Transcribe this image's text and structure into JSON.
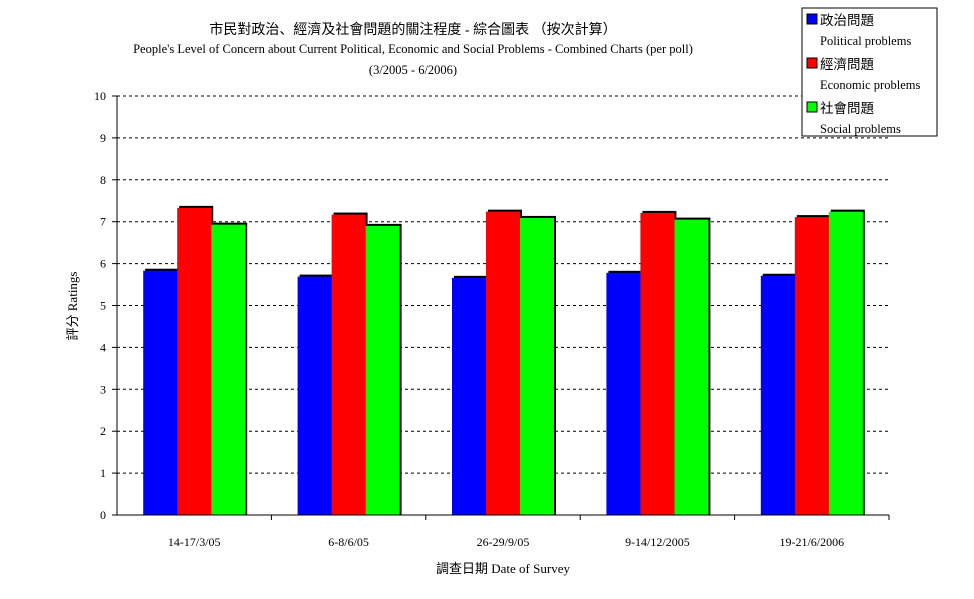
{
  "chart_data": {
    "type": "bar",
    "title": "市民對政治、經濟及社會問題的關注程度  -  綜合圖表  （按次計算）",
    "subtitle": "People's Level of Concern about Current Political, Economic and Social Problems - Combined Charts (per poll)",
    "period": "(3/2005 - 6/2006)",
    "xlabel": "調查日期 Date of Survey",
    "ylabel": "評分 Ratings",
    "ylim": [
      0,
      10
    ],
    "yticks": [
      "0",
      "1",
      "2",
      "3",
      "4",
      "5",
      "6",
      "7",
      "8",
      "9",
      "10"
    ],
    "grid": true,
    "legend_position": "top-right",
    "categories": [
      "14-17/3/05",
      "6-8/6/05",
      "26-29/9/05",
      "9-14/12/2005",
      "19-21/6/2006"
    ],
    "series": [
      {
        "name": "政治問題",
        "name_en": "Political problems",
        "color": "#0000ff",
        "values": [
          5.83,
          5.69,
          5.66,
          5.78,
          5.71
        ]
      },
      {
        "name": "經濟問題",
        "name_en": "Economic problems",
        "color": "#ff0000",
        "values": [
          7.33,
          7.17,
          7.24,
          7.21,
          7.11
        ]
      },
      {
        "name": "社會問題",
        "name_en": "Social problems",
        "color": "#00ff00",
        "values": [
          6.93,
          6.9,
          7.09,
          7.05,
          7.24
        ]
      }
    ]
  }
}
